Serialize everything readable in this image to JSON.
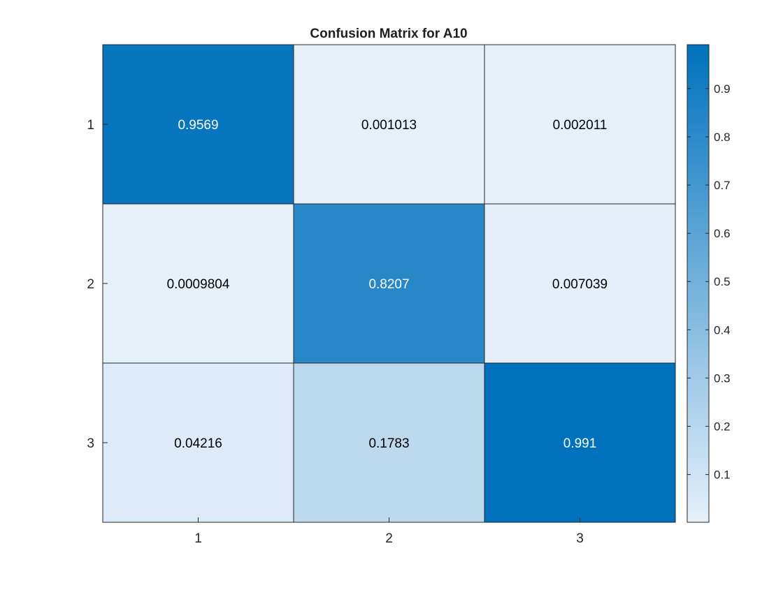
{
  "chart_data": {
    "type": "heatmap",
    "title": "Confusion Matrix for A10",
    "xlabel": "",
    "ylabel": "",
    "x_categories": [
      "1",
      "2",
      "3"
    ],
    "y_categories": [
      "1",
      "2",
      "3"
    ],
    "values": [
      [
        0.9569,
        0.001013,
        0.002011
      ],
      [
        0.0009804,
        0.8207,
        0.007039
      ],
      [
        0.04216,
        0.1783,
        0.991
      ]
    ],
    "cell_labels": [
      [
        "0.9569",
        "0.001013",
        "0.002011"
      ],
      [
        "0.0009804",
        "0.8207",
        "0.007039"
      ],
      [
        "0.04216",
        "0.1783",
        "0.991"
      ]
    ],
    "colorbar": {
      "range": [
        0.0009804,
        0.991
      ],
      "ticks": [
        0.1,
        0.2,
        0.3,
        0.4,
        0.5,
        0.6,
        0.7,
        0.8,
        0.9
      ],
      "tick_labels": [
        "0.1",
        "0.2",
        "0.3",
        "0.4",
        "0.5",
        "0.6",
        "0.7",
        "0.8",
        "0.9"
      ],
      "low_color": "#e6f0f9",
      "high_color": "#0072bd"
    },
    "grid": true,
    "legend": "colorbar-right"
  }
}
